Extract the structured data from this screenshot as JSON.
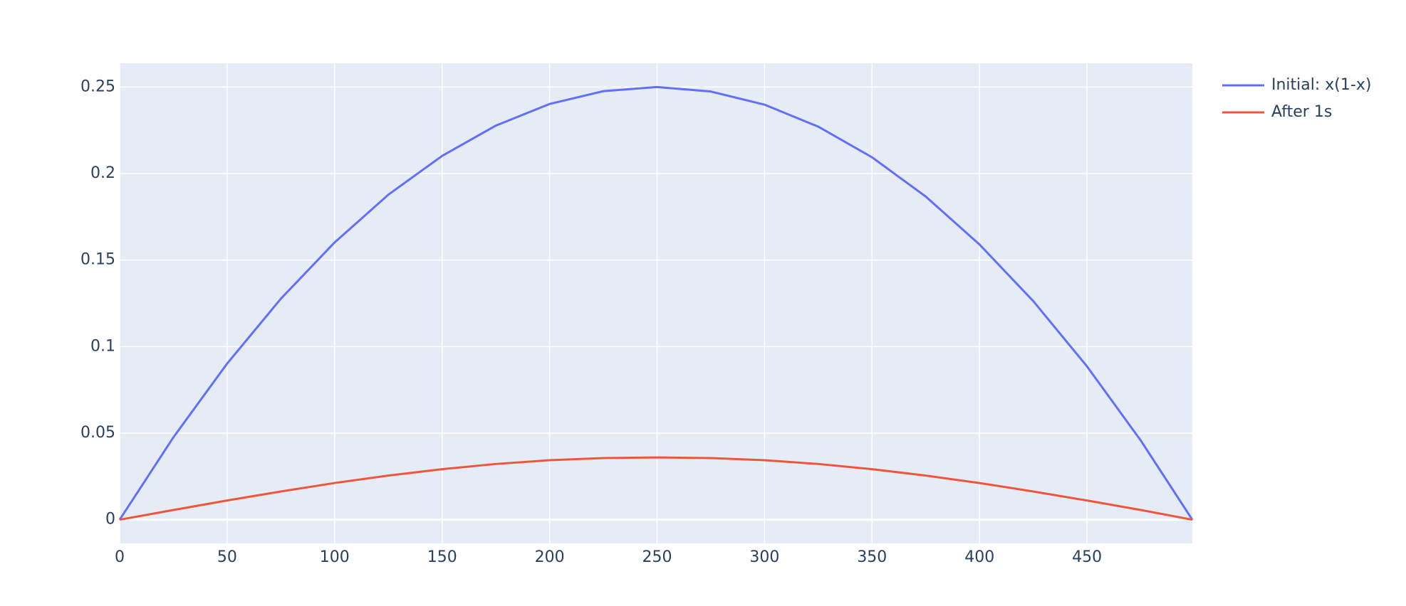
{
  "chart_data": {
    "type": "line",
    "x": [
      0,
      25,
      50,
      75,
      100,
      125,
      150,
      175,
      200,
      225,
      250,
      275,
      300,
      325,
      350,
      375,
      400,
      425,
      450,
      475,
      499
    ],
    "series": [
      {
        "name": "Initial: x(1-x)",
        "color": "#636efa",
        "values": [
          0,
          0.0476,
          0.0902,
          0.1277,
          0.1602,
          0.1878,
          0.2102,
          0.2277,
          0.2402,
          0.2476,
          0.25,
          0.2474,
          0.2398,
          0.2271,
          0.2094,
          0.1867,
          0.159,
          0.1263,
          0.0886,
          0.0458,
          0
        ]
      },
      {
        "name": "After 1s",
        "color": "#ef553b",
        "values": [
          0,
          0.0056,
          0.0111,
          0.0163,
          0.0212,
          0.0255,
          0.0292,
          0.0322,
          0.0344,
          0.0356,
          0.036,
          0.0356,
          0.0344,
          0.0322,
          0.0292,
          0.0255,
          0.0212,
          0.0163,
          0.0111,
          0.0056,
          0
        ]
      }
    ],
    "xlim": [
      0,
      499
    ],
    "xticks": [
      0,
      50,
      100,
      150,
      200,
      250,
      300,
      350,
      400,
      450
    ],
    "ylim": [
      -0.0137,
      0.2637
    ],
    "yticks": [
      0,
      0.05,
      0.1,
      0.15,
      0.2,
      0.25
    ],
    "grid": true,
    "legend": "right"
  }
}
